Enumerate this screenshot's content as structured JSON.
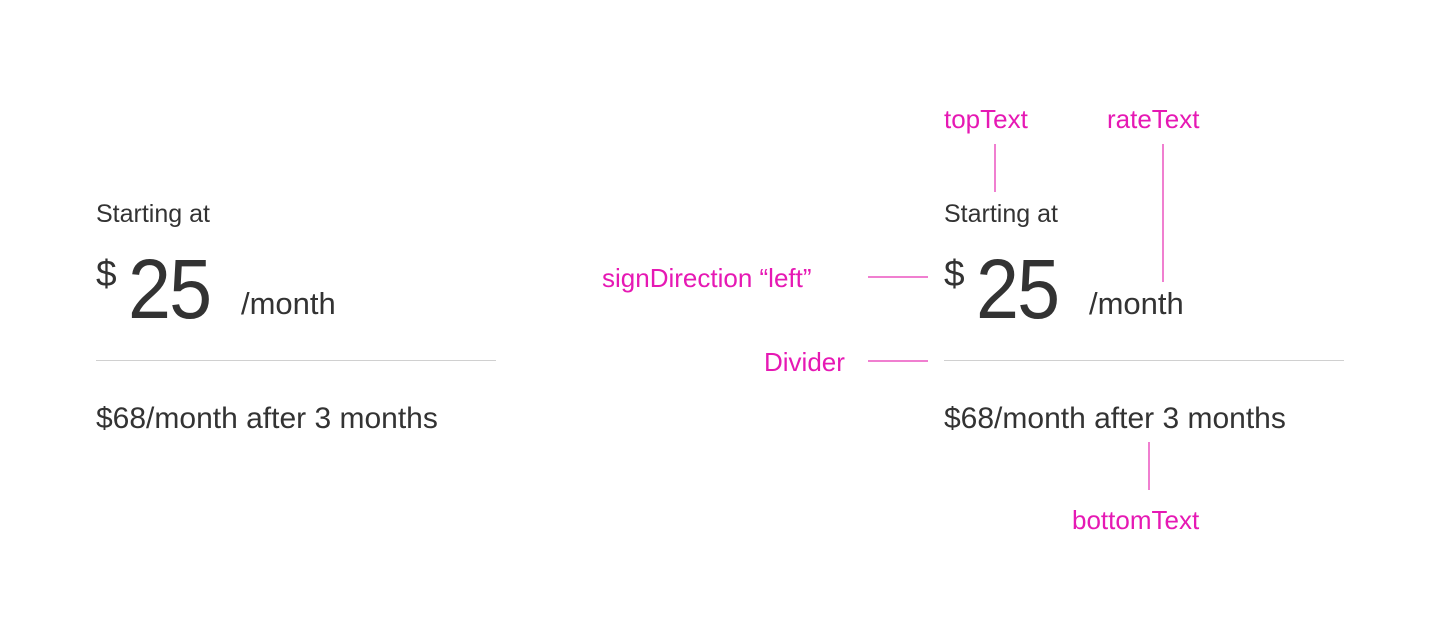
{
  "cards": [
    {
      "top_text": "Starting at",
      "currency_sign": "$",
      "amount": "25",
      "rate_text": "/month",
      "bottom_text": "$68/month after 3 months"
    },
    {
      "top_text": "Starting at",
      "currency_sign": "$",
      "amount": "25",
      "rate_text": "/month",
      "bottom_text": "$68/month after 3 months"
    }
  ],
  "annotations": {
    "top_text": "topText",
    "rate_text": "rateText",
    "sign_direction": "signDirection “left”",
    "divider": "Divider",
    "bottom_text": "bottomText"
  },
  "colors": {
    "annotation": "#e619b4",
    "text": "#333333",
    "divider": "#d0d0d0"
  }
}
